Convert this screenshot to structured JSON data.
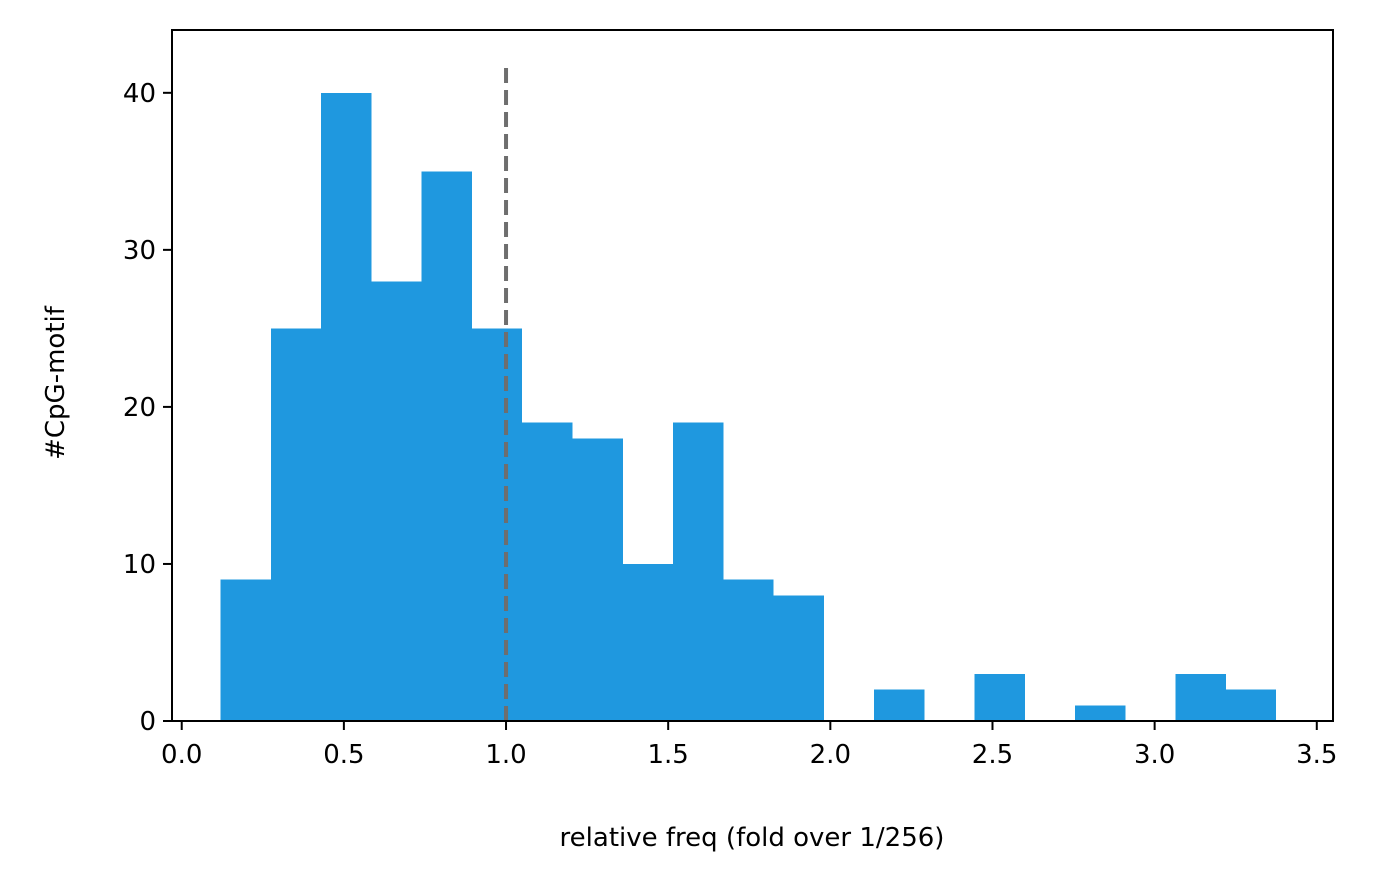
{
  "chart_data": {
    "type": "bar",
    "title": "",
    "xlabel": "relative freq (fold over 1/256)",
    "ylabel": "#CpG-motif",
    "xlim": [
      -0.03,
      3.55
    ],
    "ylim": [
      0,
      44
    ],
    "grid": false,
    "legend": "none",
    "bar_color": "#1f98df",
    "reference_line": {
      "x": 1.0,
      "style": "dashed",
      "color": "#6e6e6e"
    },
    "x_ticks": [
      0.0,
      0.5,
      1.0,
      1.5,
      2.0,
      2.5,
      3.0,
      3.5
    ],
    "x_tick_labels": [
      "0.0",
      "0.5",
      "1.0",
      "1.5",
      "2.0",
      "2.5",
      "3.0",
      "3.5"
    ],
    "y_ticks": [
      0,
      10,
      20,
      30,
      40
    ],
    "y_tick_labels": [
      "0",
      "10",
      "20",
      "30",
      "40"
    ],
    "bins": [
      {
        "x0": 0.12,
        "x1": 0.275,
        "count": 9
      },
      {
        "x0": 0.275,
        "x1": 0.43,
        "count": 25
      },
      {
        "x0": 0.43,
        "x1": 0.585,
        "count": 40
      },
      {
        "x0": 0.585,
        "x1": 0.74,
        "count": 28
      },
      {
        "x0": 0.74,
        "x1": 0.895,
        "count": 35
      },
      {
        "x0": 0.895,
        "x1": 1.05,
        "count": 25
      },
      {
        "x0": 1.05,
        "x1": 1.205,
        "count": 19
      },
      {
        "x0": 1.205,
        "x1": 1.36,
        "count": 18
      },
      {
        "x0": 1.36,
        "x1": 1.515,
        "count": 10
      },
      {
        "x0": 1.515,
        "x1": 1.67,
        "count": 19
      },
      {
        "x0": 1.67,
        "x1": 1.825,
        "count": 9
      },
      {
        "x0": 1.825,
        "x1": 1.98,
        "count": 8
      },
      {
        "x0": 1.98,
        "x1": 2.135,
        "count": 0
      },
      {
        "x0": 2.135,
        "x1": 2.29,
        "count": 2
      },
      {
        "x0": 2.29,
        "x1": 2.445,
        "count": 0
      },
      {
        "x0": 2.445,
        "x1": 2.6,
        "count": 3
      },
      {
        "x0": 2.6,
        "x1": 2.755,
        "count": 0
      },
      {
        "x0": 2.755,
        "x1": 2.91,
        "count": 1
      },
      {
        "x0": 2.91,
        "x1": 3.065,
        "count": 0
      },
      {
        "x0": 3.065,
        "x1": 3.22,
        "count": 3
      },
      {
        "x0": 3.22,
        "x1": 3.375,
        "count": 2
      }
    ]
  }
}
